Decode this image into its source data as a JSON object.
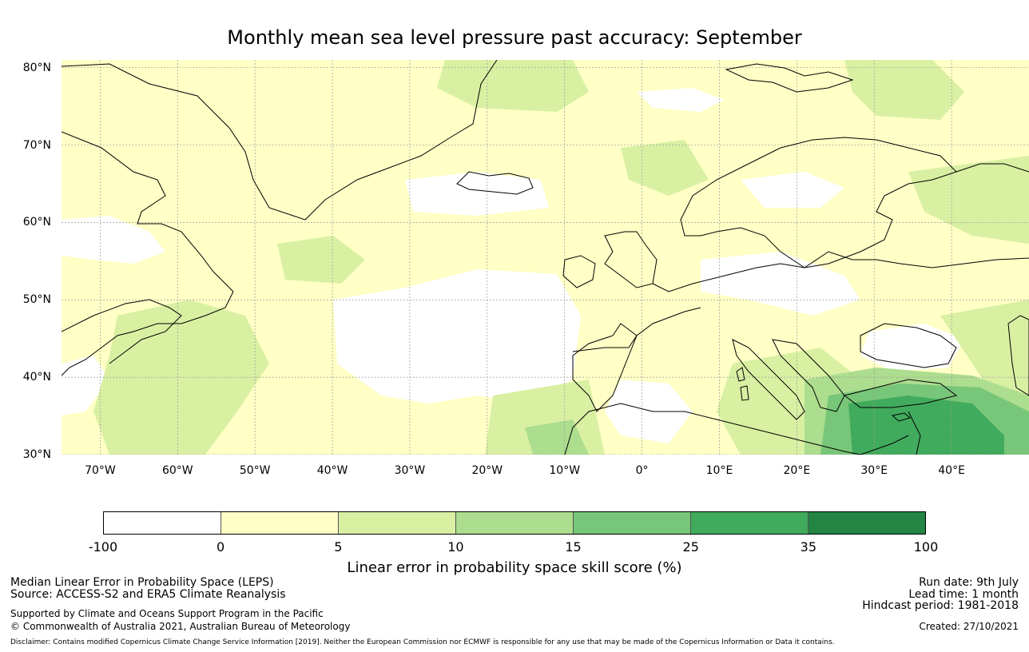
{
  "title": "Monthly mean sea level pressure past accuracy: September",
  "map": {
    "lat_labels": [
      "80°N",
      "70°N",
      "60°N",
      "50°N",
      "40°N",
      "30°N"
    ],
    "lon_labels": [
      "70°W",
      "60°W",
      "50°W",
      "40°W",
      "30°W",
      "20°W",
      "10°W",
      "0°",
      "10°E",
      "20°E",
      "30°E",
      "40°E"
    ],
    "lat_range": [
      30,
      81
    ],
    "lon_range": [
      -75,
      50
    ]
  },
  "colorbar": {
    "ticks": [
      "-100",
      "0",
      "5",
      "10",
      "15",
      "25",
      "35",
      "100"
    ],
    "colors": [
      "#ffffff",
      "#ffffc6",
      "#d9f0a3",
      "#addd8e",
      "#78c679",
      "#41ab5d",
      "#238443"
    ],
    "label": "Linear error in probability space skill score (%)"
  },
  "footer": {
    "left_line1": "Median Linear Error in Probability Space (LEPS)",
    "left_line2": "Source: ACCESS-S2 and ERA5 Climate Reanalysis",
    "left_line3": "Supported by Climate and Oceans Support Program in the Pacific",
    "left_line4": "© Commonwealth of Australia 2021, Australian Bureau of Meteorology",
    "right_line1": "Run date: 9th July",
    "right_line2": "Lead time: 1 month",
    "right_line3": "Hindcast period: 1981-2018",
    "right_line4": "Created: 27/10/2021",
    "disclaimer": "Disclaimer: Contains modified Copernicus Climate Change Service Information [2019]. Neither the European Commission nor ECMWF is responsible for any use that may be made of the Copernicus Information or Data it contains."
  }
}
